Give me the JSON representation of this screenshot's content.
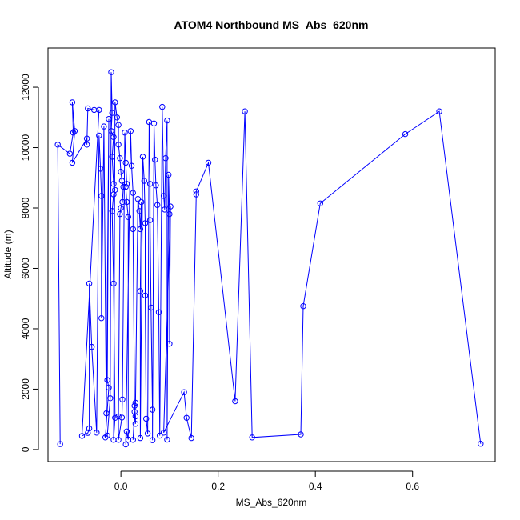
{
  "chart_data": {
    "type": "line",
    "title": "ATOM4 Northbound MS_Abs_620nm",
    "xlabel": "MS_Abs_620nm",
    "ylabel": "Altitude (m)",
    "xlim": [
      -0.15,
      0.77
    ],
    "ylim": [
      -400,
      13300
    ],
    "x_ticks": [
      0.0,
      0.2,
      0.4,
      0.6
    ],
    "x_tick_labels": [
      "0.0",
      "0.2",
      "0.4",
      "0.6"
    ],
    "y_ticks": [
      0,
      2000,
      4000,
      6000,
      8000,
      10000,
      12000
    ],
    "y_tick_labels": [
      "0",
      "2000",
      "4000",
      "6000",
      "8000",
      "10000",
      "12000"
    ],
    "grid": false,
    "series_color": "#0000ff",
    "series": [
      {
        "marker": "open-circle",
        "points": [
          [
            -0.125,
            180
          ],
          [
            -0.13,
            10100
          ],
          [
            -0.105,
            9800
          ],
          [
            -0.098,
            10500
          ],
          [
            -0.1,
            11500
          ],
          [
            -0.095,
            10550
          ],
          [
            -0.1,
            9500
          ],
          [
            -0.07,
            10300
          ],
          [
            -0.07,
            10100
          ],
          [
            -0.068,
            11300
          ],
          [
            -0.055,
            11250
          ],
          [
            -0.045,
            11250
          ],
          [
            -0.08,
            450
          ],
          [
            -0.068,
            550
          ],
          [
            -0.065,
            700
          ],
          [
            -0.065,
            5500
          ],
          [
            -0.06,
            3400
          ],
          [
            -0.05,
            560
          ],
          [
            -0.045,
            10400
          ],
          [
            -0.042,
            9300
          ],
          [
            -0.04,
            8400
          ],
          [
            -0.04,
            4350
          ],
          [
            -0.035,
            10700
          ],
          [
            -0.03,
            1200
          ],
          [
            -0.025,
            10950
          ],
          [
            -0.028,
            2300
          ],
          [
            -0.025,
            2050
          ],
          [
            -0.032,
            400
          ],
          [
            -0.028,
            460
          ],
          [
            -0.022,
            1700
          ],
          [
            -0.02,
            12500
          ],
          [
            -0.018,
            11150
          ],
          [
            -0.02,
            10550
          ],
          [
            -0.015,
            10350
          ],
          [
            -0.018,
            9700
          ],
          [
            -0.015,
            8800
          ],
          [
            -0.012,
            8600
          ],
          [
            -0.015,
            8450
          ],
          [
            -0.018,
            7900
          ],
          [
            -0.015,
            5500
          ],
          [
            -0.012,
            1050
          ],
          [
            -0.015,
            320
          ],
          [
            -0.012,
            11500
          ],
          [
            -0.008,
            11000
          ],
          [
            -0.005,
            10750
          ],
          [
            -0.005,
            10100
          ],
          [
            -0.002,
            9650
          ],
          [
            0.0,
            9200
          ],
          [
            0.002,
            8900
          ],
          [
            0.005,
            8700
          ],
          [
            0.003,
            8200
          ],
          [
            0.0,
            8000
          ],
          [
            -0.002,
            7800
          ],
          [
            -0.005,
            1100
          ],
          [
            -0.005,
            320
          ],
          [
            0.002,
            1060
          ],
          [
            0.003,
            1660
          ],
          [
            0.008,
            10500
          ],
          [
            0.01,
            9500
          ],
          [
            0.012,
            8800
          ],
          [
            0.01,
            8700
          ],
          [
            0.012,
            8200
          ],
          [
            0.015,
            7700
          ],
          [
            0.015,
            330
          ],
          [
            0.012,
            600
          ],
          [
            0.01,
            170
          ],
          [
            0.02,
            10550
          ],
          [
            0.022,
            9400
          ],
          [
            0.025,
            8500
          ],
          [
            0.025,
            7300
          ],
          [
            0.028,
            1450
          ],
          [
            0.03,
            1100
          ],
          [
            0.03,
            850
          ],
          [
            0.028,
            1250
          ],
          [
            0.025,
            320
          ],
          [
            0.03,
            1550
          ],
          [
            0.035,
            8300
          ],
          [
            0.038,
            7900
          ],
          [
            0.04,
            7300
          ],
          [
            0.042,
            8200
          ],
          [
            0.04,
            5250
          ],
          [
            0.04,
            380
          ],
          [
            0.045,
            9700
          ],
          [
            0.048,
            8900
          ],
          [
            0.05,
            7500
          ],
          [
            0.05,
            5100
          ],
          [
            0.052,
            1020
          ],
          [
            0.055,
            530
          ],
          [
            0.058,
            10850
          ],
          [
            0.06,
            8800
          ],
          [
            0.06,
            7600
          ],
          [
            0.062,
            4700
          ],
          [
            0.065,
            1320
          ],
          [
            0.065,
            310
          ],
          [
            0.068,
            10800
          ],
          [
            0.07,
            9600
          ],
          [
            0.072,
            8750
          ],
          [
            0.075,
            8100
          ],
          [
            0.078,
            4550
          ],
          [
            0.08,
            460
          ],
          [
            0.085,
            11350
          ],
          [
            0.088,
            8400
          ],
          [
            0.09,
            7950
          ],
          [
            0.092,
            9650
          ],
          [
            0.095,
            10900
          ],
          [
            0.095,
            330
          ],
          [
            0.098,
            9100
          ],
          [
            0.1,
            7800
          ],
          [
            0.1,
            3500
          ],
          [
            0.102,
            8050
          ],
          [
            0.088,
            560
          ],
          [
            0.13,
            1900
          ],
          [
            0.135,
            1050
          ],
          [
            0.145,
            380
          ],
          [
            0.155,
            8450
          ],
          [
            0.155,
            8550
          ],
          [
            0.18,
            9500
          ],
          [
            0.235,
            1600
          ],
          [
            0.255,
            11200
          ],
          [
            0.27,
            400
          ],
          [
            0.37,
            500
          ],
          [
            0.375,
            4750
          ],
          [
            0.41,
            8150
          ],
          [
            0.585,
            10450
          ],
          [
            0.655,
            11200
          ],
          [
            0.74,
            190
          ]
        ]
      }
    ]
  }
}
